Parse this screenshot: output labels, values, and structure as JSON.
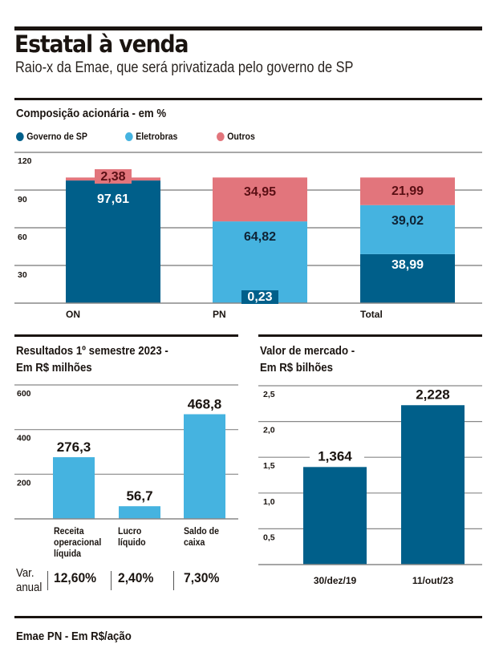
{
  "header": {
    "title": "Estatal à venda",
    "subtitle": "Raio-x da Emae, que será privatizada pelo governo de SP"
  },
  "colors": {
    "governo": "#005f8a",
    "eletrobras": "#45b3e0",
    "outros": "#e2757c",
    "text_dark": "#1a1410",
    "label_outros": "#5a0f14",
    "label_dark_on_light": "#0f2335"
  },
  "chart_data": [
    {
      "id": "composicao",
      "type": "bar",
      "stacked": true,
      "title": "Composição acionária - em %",
      "categories": [
        "ON",
        "PN",
        "Total"
      ],
      "series": [
        {
          "name": "Governo de SP",
          "values": [
            97.61,
            0.23,
            38.99
          ],
          "labels": [
            "97,61",
            "0,23",
            "38,99"
          ]
        },
        {
          "name": "Eletrobras",
          "values": [
            0,
            64.82,
            39.02
          ],
          "labels": [
            "",
            "64,82",
            "39,02"
          ]
        },
        {
          "name": "Outros",
          "values": [
            2.38,
            34.95,
            21.99
          ],
          "labels": [
            "2,38",
            "34,95",
            "21,99"
          ]
        }
      ],
      "yticks": [
        30,
        60,
        90,
        120
      ],
      "ytick_labels": [
        "30",
        "60",
        "90",
        "120"
      ],
      "ylim": [
        0,
        120
      ],
      "grid": true,
      "legend": "top-left",
      "xlabel": "",
      "ylabel": ""
    },
    {
      "id": "resultados",
      "type": "bar",
      "title": "Resultados 1º semestre 2023 - Em R$ milhões",
      "title_lines": [
        "Resultados 1º semestre 2023 -",
        "Em R$ milhões"
      ],
      "categories": [
        "Receita operacional líquida",
        "Lucro líquido",
        "Saldo de caixa"
      ],
      "category_lines": [
        [
          "Receita",
          "operacional",
          "líquida"
        ],
        [
          "Lucro",
          "líquido"
        ],
        [
          "Saldo de",
          "caixa"
        ]
      ],
      "values": [
        276.3,
        56.7,
        468.8
      ],
      "value_labels": [
        "276,3",
        "56,7",
        "468,8"
      ],
      "yticks": [
        200,
        400,
        600
      ],
      "ytick_labels": [
        "200",
        "400",
        "600"
      ],
      "ylim": [
        0,
        600
      ],
      "grid": true,
      "var_anual_label": [
        "Var.",
        "anual"
      ],
      "var_anual": [
        "12,60%",
        "2,40%",
        "7,30%"
      ],
      "xlabel": "",
      "ylabel": ""
    },
    {
      "id": "valor_mercado",
      "type": "bar",
      "title": "Valor de mercado - Em R$ bilhões",
      "title_lines": [
        "Valor de mercado -",
        "Em R$ bilhões"
      ],
      "categories": [
        "30/dez/19",
        "11/out/23"
      ],
      "values": [
        1.364,
        2.228
      ],
      "value_labels": [
        "1,364",
        "2,228"
      ],
      "yticks": [
        0.5,
        1.0,
        1.5,
        2.0,
        2.5
      ],
      "ytick_labels": [
        "0,5",
        "1,0",
        "1,5",
        "2,0",
        "2,5"
      ],
      "ylim": [
        0,
        2.5
      ],
      "grid": true,
      "xlabel": "",
      "ylabel": ""
    }
  ],
  "footer": {
    "section_title": "Emae PN - Em R$/ação"
  }
}
